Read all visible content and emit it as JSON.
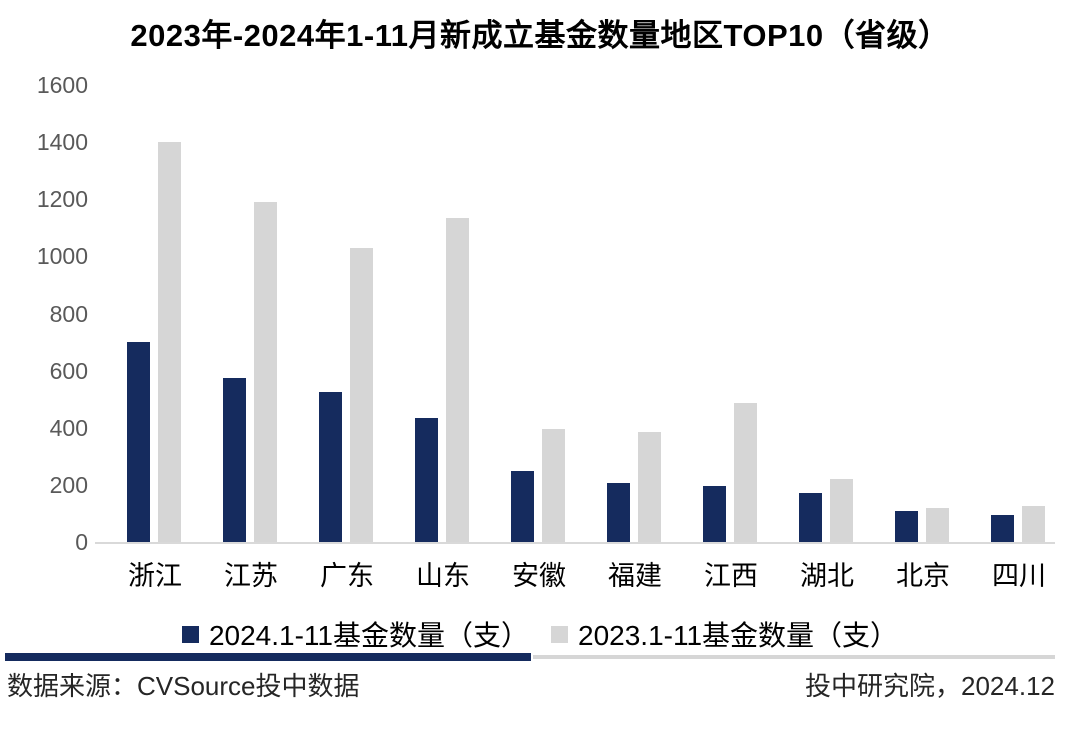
{
  "title": "2023年-2024年1-11月新成立基金数量地区TOP10（省级）",
  "chart_data": {
    "type": "bar",
    "title": "2023年-2024年1-11月新成立基金数量地区TOP10（省级）",
    "categories": [
      "浙江",
      "江苏",
      "广东",
      "山东",
      "安徽",
      "福建",
      "江西",
      "湖北",
      "北京",
      "四川"
    ],
    "series": [
      {
        "name": "2024.1-11基金数量（支）",
        "color": "#152b5e",
        "values": [
          700,
          575,
          525,
          435,
          250,
          205,
          195,
          170,
          110,
          95
        ]
      },
      {
        "name": "2023.1-11基金数量（支）",
        "color": "#d6d6d6",
        "values": [
          1400,
          1190,
          1030,
          1135,
          395,
          385,
          485,
          220,
          120,
          125
        ]
      }
    ],
    "xlabel": "",
    "ylabel": "",
    "ylim": [
      0,
      1600
    ],
    "ytick_step": 200,
    "yticks": [
      0,
      200,
      400,
      600,
      800,
      1000,
      1200,
      1400,
      1600
    ],
    "grid": false,
    "legend_position": "bottom"
  },
  "footer": {
    "source": "数据来源：CVSource投中数据",
    "publisher": "投中研究院，2024.12"
  },
  "colors": {
    "navy": "#152b5e",
    "light_gray": "#d6d6d6",
    "axis_line": "#d9d9d9",
    "tick_label": "#595959"
  }
}
